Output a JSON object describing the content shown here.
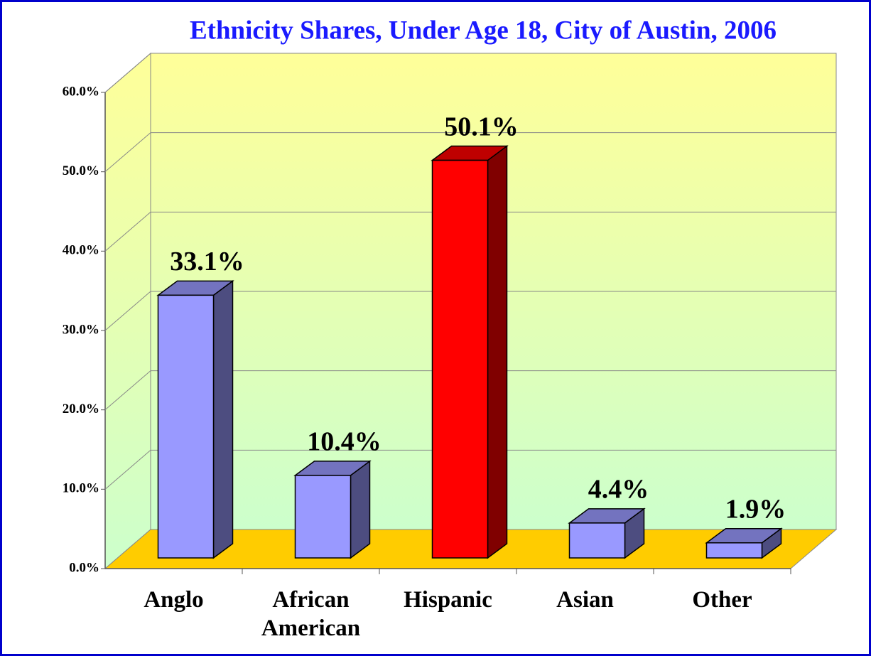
{
  "chart_data": {
    "type": "bar3d",
    "title": "Ethnicity Shares, Under Age 18, City of Austin, 2006",
    "categories": [
      "Anglo",
      "African American",
      "Hispanic",
      "Asian",
      "Other"
    ],
    "values": [
      33.1,
      10.4,
      50.1,
      4.4,
      1.9
    ],
    "value_labels": [
      "33.1%",
      "10.4%",
      "50.1%",
      "4.4%",
      "1.9%"
    ],
    "colors": [
      "#9999ff",
      "#9999ff",
      "#ff0000",
      "#9999ff",
      "#9999ff"
    ],
    "ylim": [
      0,
      60
    ],
    "yticks": [
      {
        "value": 0,
        "label": "0.0%"
      },
      {
        "value": 10,
        "label": "10.0%"
      },
      {
        "value": 20,
        "label": "20.0%"
      },
      {
        "value": 30,
        "label": "30.0%"
      },
      {
        "value": 40,
        "label": "40.0%"
      },
      {
        "value": 50,
        "label": "50.0%"
      },
      {
        "value": 60,
        "label": "60.0%"
      }
    ],
    "grid": true
  }
}
